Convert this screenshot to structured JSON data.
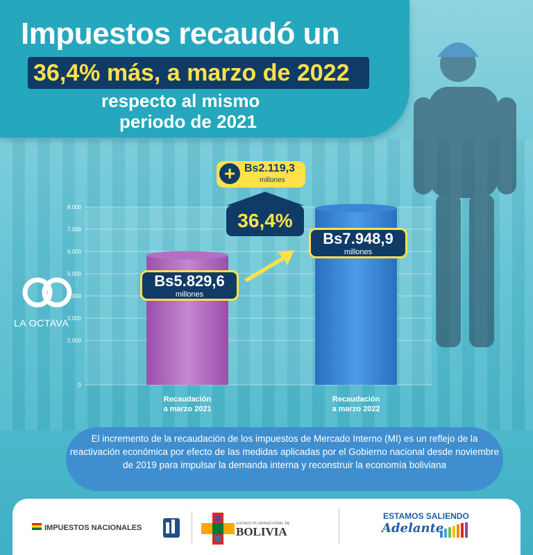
{
  "title": {
    "line1": "Impuestos recaudó un",
    "line2": "36,4% más, a marzo de 2022",
    "line3": "respecto al mismo",
    "line4": "periodo de 2021"
  },
  "chart_data": {
    "type": "bar",
    "categories": [
      "Recaudación a marzo 2021",
      "Recaudación a marzo 2022"
    ],
    "category_lines": [
      [
        "Recaudación",
        "a marzo 2021"
      ],
      [
        "Recaudación",
        "a marzo 2022"
      ]
    ],
    "values": [
      5829.6,
      7948.9
    ],
    "value_labels": [
      "Bs5.829,6",
      "Bs7.948,9"
    ],
    "value_unit": "millones",
    "ylim": [
      0,
      8000
    ],
    "yticks": [
      0,
      2000,
      3000,
      4000,
      5000,
      6000,
      7000,
      8000
    ],
    "ytick_labels": [
      "0",
      "2.000",
      "3.000",
      "4.000",
      "5.000",
      "6.000",
      "7.000",
      "8.000"
    ],
    "grid": true,
    "bar_colors": [
      "#b56fc2",
      "#3a87d6"
    ],
    "increase": {
      "value_label": "Bs2.119,3",
      "unit": "millones",
      "percent": "36,4%"
    }
  },
  "logo": {
    "text": "LA OCTAVA"
  },
  "note": "El incremento de la recaudación de los impuestos de Mercado Interno (MI) es un reflejo de la reactivación económica por efecto de las medidas aplicadas por el Gobierno nacional desde noviembre de 2019 para impulsar la demanda interna y reconstruir la economía boliviana",
  "footer": {
    "impuestos": "IMPUESTOS NACIONALES",
    "estado_small": "ESTADO PLURINACIONAL DE",
    "bolivia": "BOLIVIA",
    "estamos": "ESTAMOS SALIENDO",
    "adelante": "Adelante"
  },
  "colors": {
    "navy": "#0f3b66",
    "yellow": "#ffe14a",
    "teal": "#25a7bd",
    "note_blue": "#3f8fd0"
  }
}
